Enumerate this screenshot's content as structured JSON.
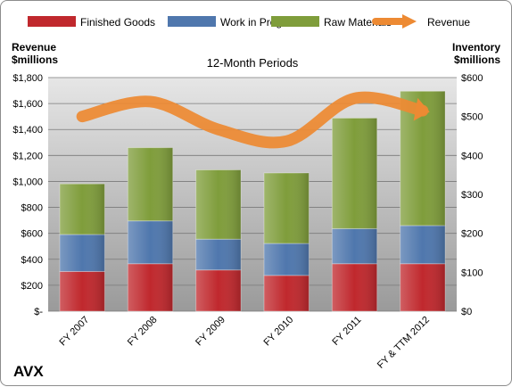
{
  "chart_data": {
    "type": "bar",
    "title": "12-Month Periods",
    "company": "AVX",
    "left_axis_label": [
      "Revenue",
      "$millions"
    ],
    "right_axis_label": [
      "Inventory",
      "$millions"
    ],
    "categories": [
      "FY 2007",
      "FY 2008",
      "FY 2009",
      "FY 2010",
      "FY 2011",
      "FY & TTM 2012"
    ],
    "stacked": true,
    "series": [
      {
        "name": "Finished Goods",
        "axis": "right",
        "color": "#c0282d",
        "values": [
          102,
          122,
          106,
          92,
          122,
          122
        ]
      },
      {
        "name": "Work in Progress",
        "axis": "right",
        "color": "#4f77ad",
        "values": [
          95,
          110,
          79,
          82,
          90,
          98
        ]
      },
      {
        "name": "Raw Materials",
        "axis": "right",
        "color": "#7f9d3b",
        "values": [
          130,
          188,
          178,
          181,
          284,
          345
        ]
      },
      {
        "name": "Revenue",
        "axis": "left",
        "type": "line",
        "color": "#ed8a33",
        "values": [
          1500,
          1615,
          1400,
          1310,
          1640,
          1545
        ]
      }
    ],
    "left_axis": {
      "min": 0,
      "max": 1800,
      "step": 200,
      "tick_labels": [
        "$-",
        "$200",
        "$400",
        "$600",
        "$800",
        "$1,000",
        "$1,200",
        "$1,400",
        "$1,600",
        "$1,800"
      ]
    },
    "right_axis": {
      "min": 0,
      "max": 600,
      "step": 100,
      "tick_labels": [
        "$0",
        "$100",
        "$200",
        "$300",
        "$400",
        "$500",
        "$600"
      ]
    },
    "legend_position": "top",
    "grid": true,
    "plot_background": "gradient-gray"
  }
}
